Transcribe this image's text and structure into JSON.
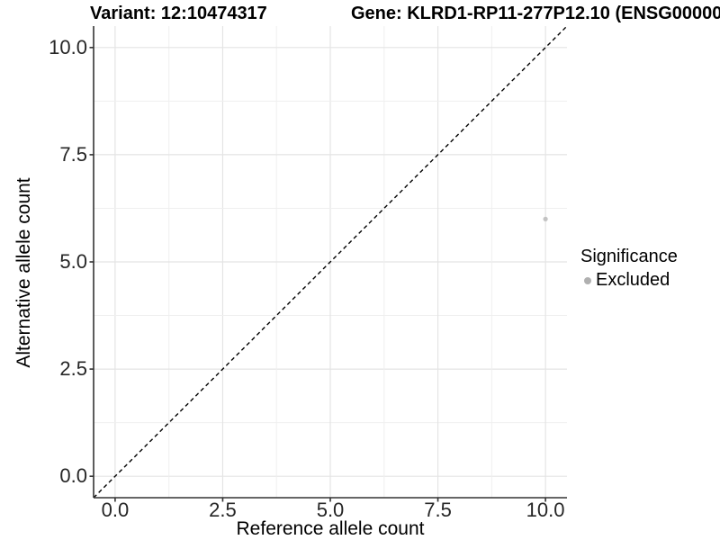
{
  "chart_data": {
    "type": "scatter",
    "title_left": "Variant: 12:10474317",
    "title_right": "Gene: KLRD1-RP11-277P12.10 (ENSG00000",
    "xlabel": "Reference allele count",
    "ylabel": "Alternative allele count",
    "x_ticks": {
      "values": [
        0,
        2.5,
        5,
        7.5,
        10
      ],
      "labels": [
        "0.0",
        "2.5",
        "5.0",
        "7.5",
        "10.0"
      ]
    },
    "y_ticks": {
      "values": [
        0,
        2.5,
        5,
        7.5,
        10
      ],
      "labels": [
        "0.0",
        "2.5",
        "5.0",
        "7.5",
        "10.0"
      ]
    },
    "xlim": [
      -0.5,
      10.5
    ],
    "ylim": [
      -0.5,
      10.5
    ],
    "grid": {
      "major_step": 2.5,
      "minor_step": 1.25,
      "major_color": "#e4e4e4",
      "minor_color": "#efefef"
    },
    "axis_line_color": "#333333",
    "reference_line": {
      "kind": "identity y=x",
      "style": "dashed",
      "color": "#000000"
    },
    "series": [
      {
        "name": "Excluded",
        "color": "#c3c3c3",
        "points": [
          {
            "x": 10,
            "y": 6
          }
        ]
      }
    ],
    "legend": {
      "title": "Significance",
      "position": "right",
      "items": [
        {
          "label": "Excluded",
          "color": "#b0b0b0"
        }
      ]
    }
  }
}
